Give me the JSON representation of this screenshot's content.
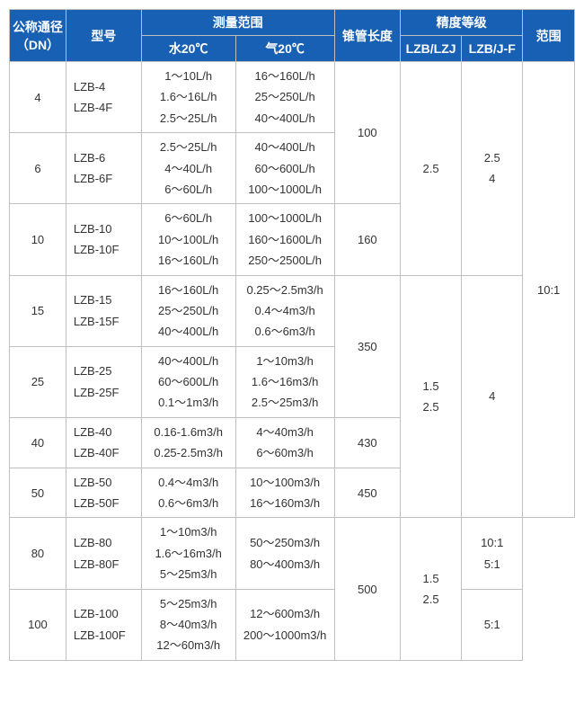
{
  "header": {
    "dn": "公称通径（DN）",
    "model": "型号",
    "measure": "测量范围",
    "water": "水20℃",
    "air": "气20℃",
    "tube_len": "锥管长度",
    "accuracy": "精度等级",
    "acc1": "LZB/LZJ",
    "acc2": "LZB/J-F",
    "range": "范围"
  },
  "rows": {
    "r4": {
      "dn": "4",
      "model": "LZB-4\nLZB-4F",
      "water": "1～10L/h\n1.6～16L/h\n2.5～25L/h",
      "air": "16～160L/h\n25～250L/h\n40～400L/h"
    },
    "r6": {
      "dn": "6",
      "model": "LZB-6\nLZB-6F",
      "water": "2.5～25L/h\n4～40L/h\n6～60L/h",
      "air": "40～400L/h\n60～600L/h\n100～1000L/h"
    },
    "r10": {
      "dn": "10",
      "model": "LZB-10\nLZB-10F",
      "water": "6～60L/h\n10～100L/h\n16～160L/h",
      "air": "100～1000L/h\n160～1600L/h\n250～2500L/h"
    },
    "r15": {
      "dn": "15",
      "model": "LZB-15\nLZB-15F",
      "water": "16～160L/h\n25～250L/h\n40～400L/h",
      "air": "0.25～2.5m3/h\n0.4～4m3/h\n0.6～6m3/h"
    },
    "r25": {
      "dn": "25",
      "model": "LZB-25\nLZB-25F",
      "water": "40～400L/h\n60～600L/h\n0.1～1m3/h",
      "air": "1～10m3/h\n1.6～16m3/h\n2.5～25m3/h"
    },
    "r40": {
      "dn": "40",
      "model": "LZB-40\nLZB-40F",
      "water": "0.16-1.6m3/h\n0.25-2.5m3/h",
      "air": "4～40m3/h\n6～60m3/h"
    },
    "r50": {
      "dn": "50",
      "model": "LZB-50\nLZB-50F",
      "water": "0.4～4m3/h\n0.6～6m3/h",
      "air": "10～100m3/h\n16～160m3/h"
    },
    "r80": {
      "dn": "80",
      "model": "LZB-80\nLZB-80F",
      "water": "1～10m3/h\n1.6～16m3/h\n5～25m3/h",
      "air": "50～250m3/h\n80～400m3/h"
    },
    "r100": {
      "dn": "100",
      "model": "LZB-100\nLZB-100F",
      "water": "5～25m3/h\n8～40m3/h\n12～60m3/h",
      "air": "12～600m3/h\n200～1000m3/h"
    }
  },
  "merges": {
    "len_4_6": "100",
    "len_10": "160",
    "len_15_25": "350",
    "len_40": "430",
    "len_50": "450",
    "len_80_100": "500",
    "acc1_top": "2.5",
    "acc1_mid": "1.5\n2.5",
    "acc1_bot": "1.5\n2.5",
    "acc2_top": "2.5\n4",
    "acc2_mid": "4",
    "range_main": "10:1",
    "range_80": "10:1\n5:1",
    "range_100": "5:1"
  },
  "style": {
    "header_bg": "#1760b3",
    "header_fg": "#ffffff",
    "border": "#bfbfbf",
    "body_bg": "#ffffff",
    "font": "Microsoft YaHei"
  }
}
